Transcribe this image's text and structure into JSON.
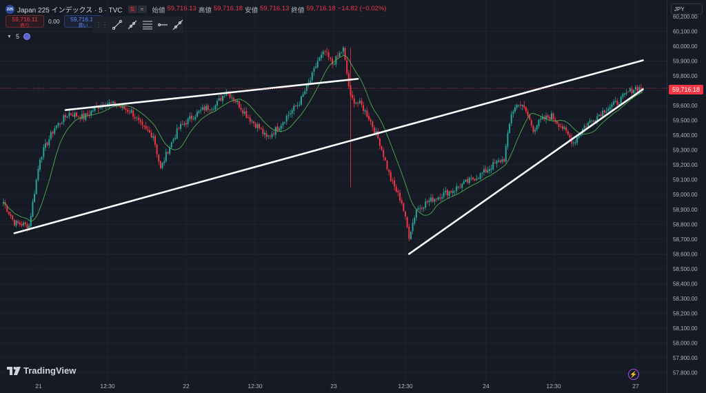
{
  "header": {
    "badge": "225",
    "title": "Japan 225 インデックス · 5 · TVC",
    "flag1": "⇅",
    "flag2": "≈",
    "ohlc": [
      {
        "label": "始値",
        "value": "59,716.13"
      },
      {
        "label": "高値",
        "value": "59,716.18"
      },
      {
        "label": "安値",
        "value": "59,716.13"
      },
      {
        "label": "終値",
        "value": "59,716.18"
      }
    ],
    "change": "−14.82 (−0.02%)"
  },
  "trade": {
    "sell_price": "59,716.11",
    "sell_label": "売り",
    "spread": "0.00",
    "buy_price": "59,716.11",
    "buy_label": "買い"
  },
  "indicator": {
    "count": "5"
  },
  "currency": "JPY",
  "current_price": "59,716.18",
  "brand": "TradingView",
  "colors": {
    "up": "#26a69a",
    "down": "#f23645",
    "ma": "#4caf50",
    "bg": "#161a25"
  },
  "chart_data": {
    "type": "candlestick",
    "ylim": [
      57700,
      60300
    ],
    "yticks": [
      57800,
      57900,
      58000,
      58100,
      58200,
      58300,
      58400,
      58500,
      58600,
      58700,
      58800,
      58900,
      59000,
      59100,
      59200,
      59300,
      59400,
      59500,
      59600,
      59700,
      59800,
      59900,
      60000,
      60100,
      60200
    ],
    "ytick_labels": [
      "57,800.00",
      "57,900.00",
      "58,000.00",
      "58,100.00",
      "58,200.00",
      "58,300.00",
      "58,400.00",
      "58,500.00",
      "58,600.00",
      "58,700.00",
      "58,800.00",
      "58,900.00",
      "59,000.00",
      "59,100.00",
      "59,200.00",
      "59,300.00",
      "59,400.00",
      "59,500.00",
      "59,600.00",
      "59,700.00",
      "59,800.00",
      "59,900.00",
      "60,000.00",
      "60,100.00",
      "60,200.00"
    ],
    "xticks": [
      "21",
      "12:30",
      "22",
      "12:30",
      "23",
      "12:30",
      "24",
      "12:30",
      "27"
    ],
    "path": [
      [
        0,
        58950
      ],
      [
        6,
        58810
      ],
      [
        14,
        58790
      ],
      [
        20,
        59250
      ],
      [
        28,
        59450
      ],
      [
        36,
        59550
      ],
      [
        44,
        59520
      ],
      [
        50,
        59580
      ],
      [
        56,
        59620
      ],
      [
        62,
        59600
      ],
      [
        70,
        59560
      ],
      [
        76,
        59450
      ],
      [
        82,
        59400
      ],
      [
        86,
        59170
      ],
      [
        90,
        59300
      ],
      [
        96,
        59450
      ],
      [
        104,
        59530
      ],
      [
        110,
        59580
      ],
      [
        116,
        59600
      ],
      [
        122,
        59700
      ],
      [
        128,
        59620
      ],
      [
        134,
        59520
      ],
      [
        140,
        59450
      ],
      [
        144,
        59380
      ],
      [
        150,
        59450
      ],
      [
        156,
        59540
      ],
      [
        162,
        59620
      ],
      [
        168,
        59770
      ],
      [
        172,
        59900
      ],
      [
        176,
        59960
      ],
      [
        180,
        59880
      ],
      [
        186,
        59980
      ],
      [
        190,
        59650
      ],
      [
        196,
        59600
      ],
      [
        200,
        59520
      ],
      [
        206,
        59350
      ],
      [
        212,
        59100
      ],
      [
        218,
        58950
      ],
      [
        222,
        58720
      ],
      [
        226,
        58900
      ],
      [
        232,
        58950
      ],
      [
        240,
        59000
      ],
      [
        246,
        59030
      ],
      [
        250,
        59060
      ],
      [
        256,
        59100
      ],
      [
        262,
        59140
      ],
      [
        268,
        59200
      ],
      [
        274,
        59240
      ],
      [
        278,
        59550
      ],
      [
        282,
        59620
      ],
      [
        286,
        59560
      ],
      [
        290,
        59440
      ],
      [
        294,
        59500
      ],
      [
        300,
        59530
      ],
      [
        306,
        59450
      ],
      [
        312,
        59350
      ],
      [
        318,
        59460
      ],
      [
        324,
        59520
      ],
      [
        330,
        59580
      ],
      [
        336,
        59620
      ],
      [
        342,
        59690
      ],
      [
        346,
        59720
      ],
      [
        350,
        59716
      ]
    ],
    "series": [
      {
        "name": "",
        "values": []
      }
    ],
    "trendlines": [
      {
        "from": [
          34,
          59570
        ],
        "to": [
          194,
          59780
        ]
      },
      {
        "from": [
          6,
          58740
        ],
        "to": [
          350,
          59905
        ]
      },
      {
        "from": [
          222,
          58600
        ],
        "to": [
          350,
          59710
        ]
      }
    ]
  }
}
